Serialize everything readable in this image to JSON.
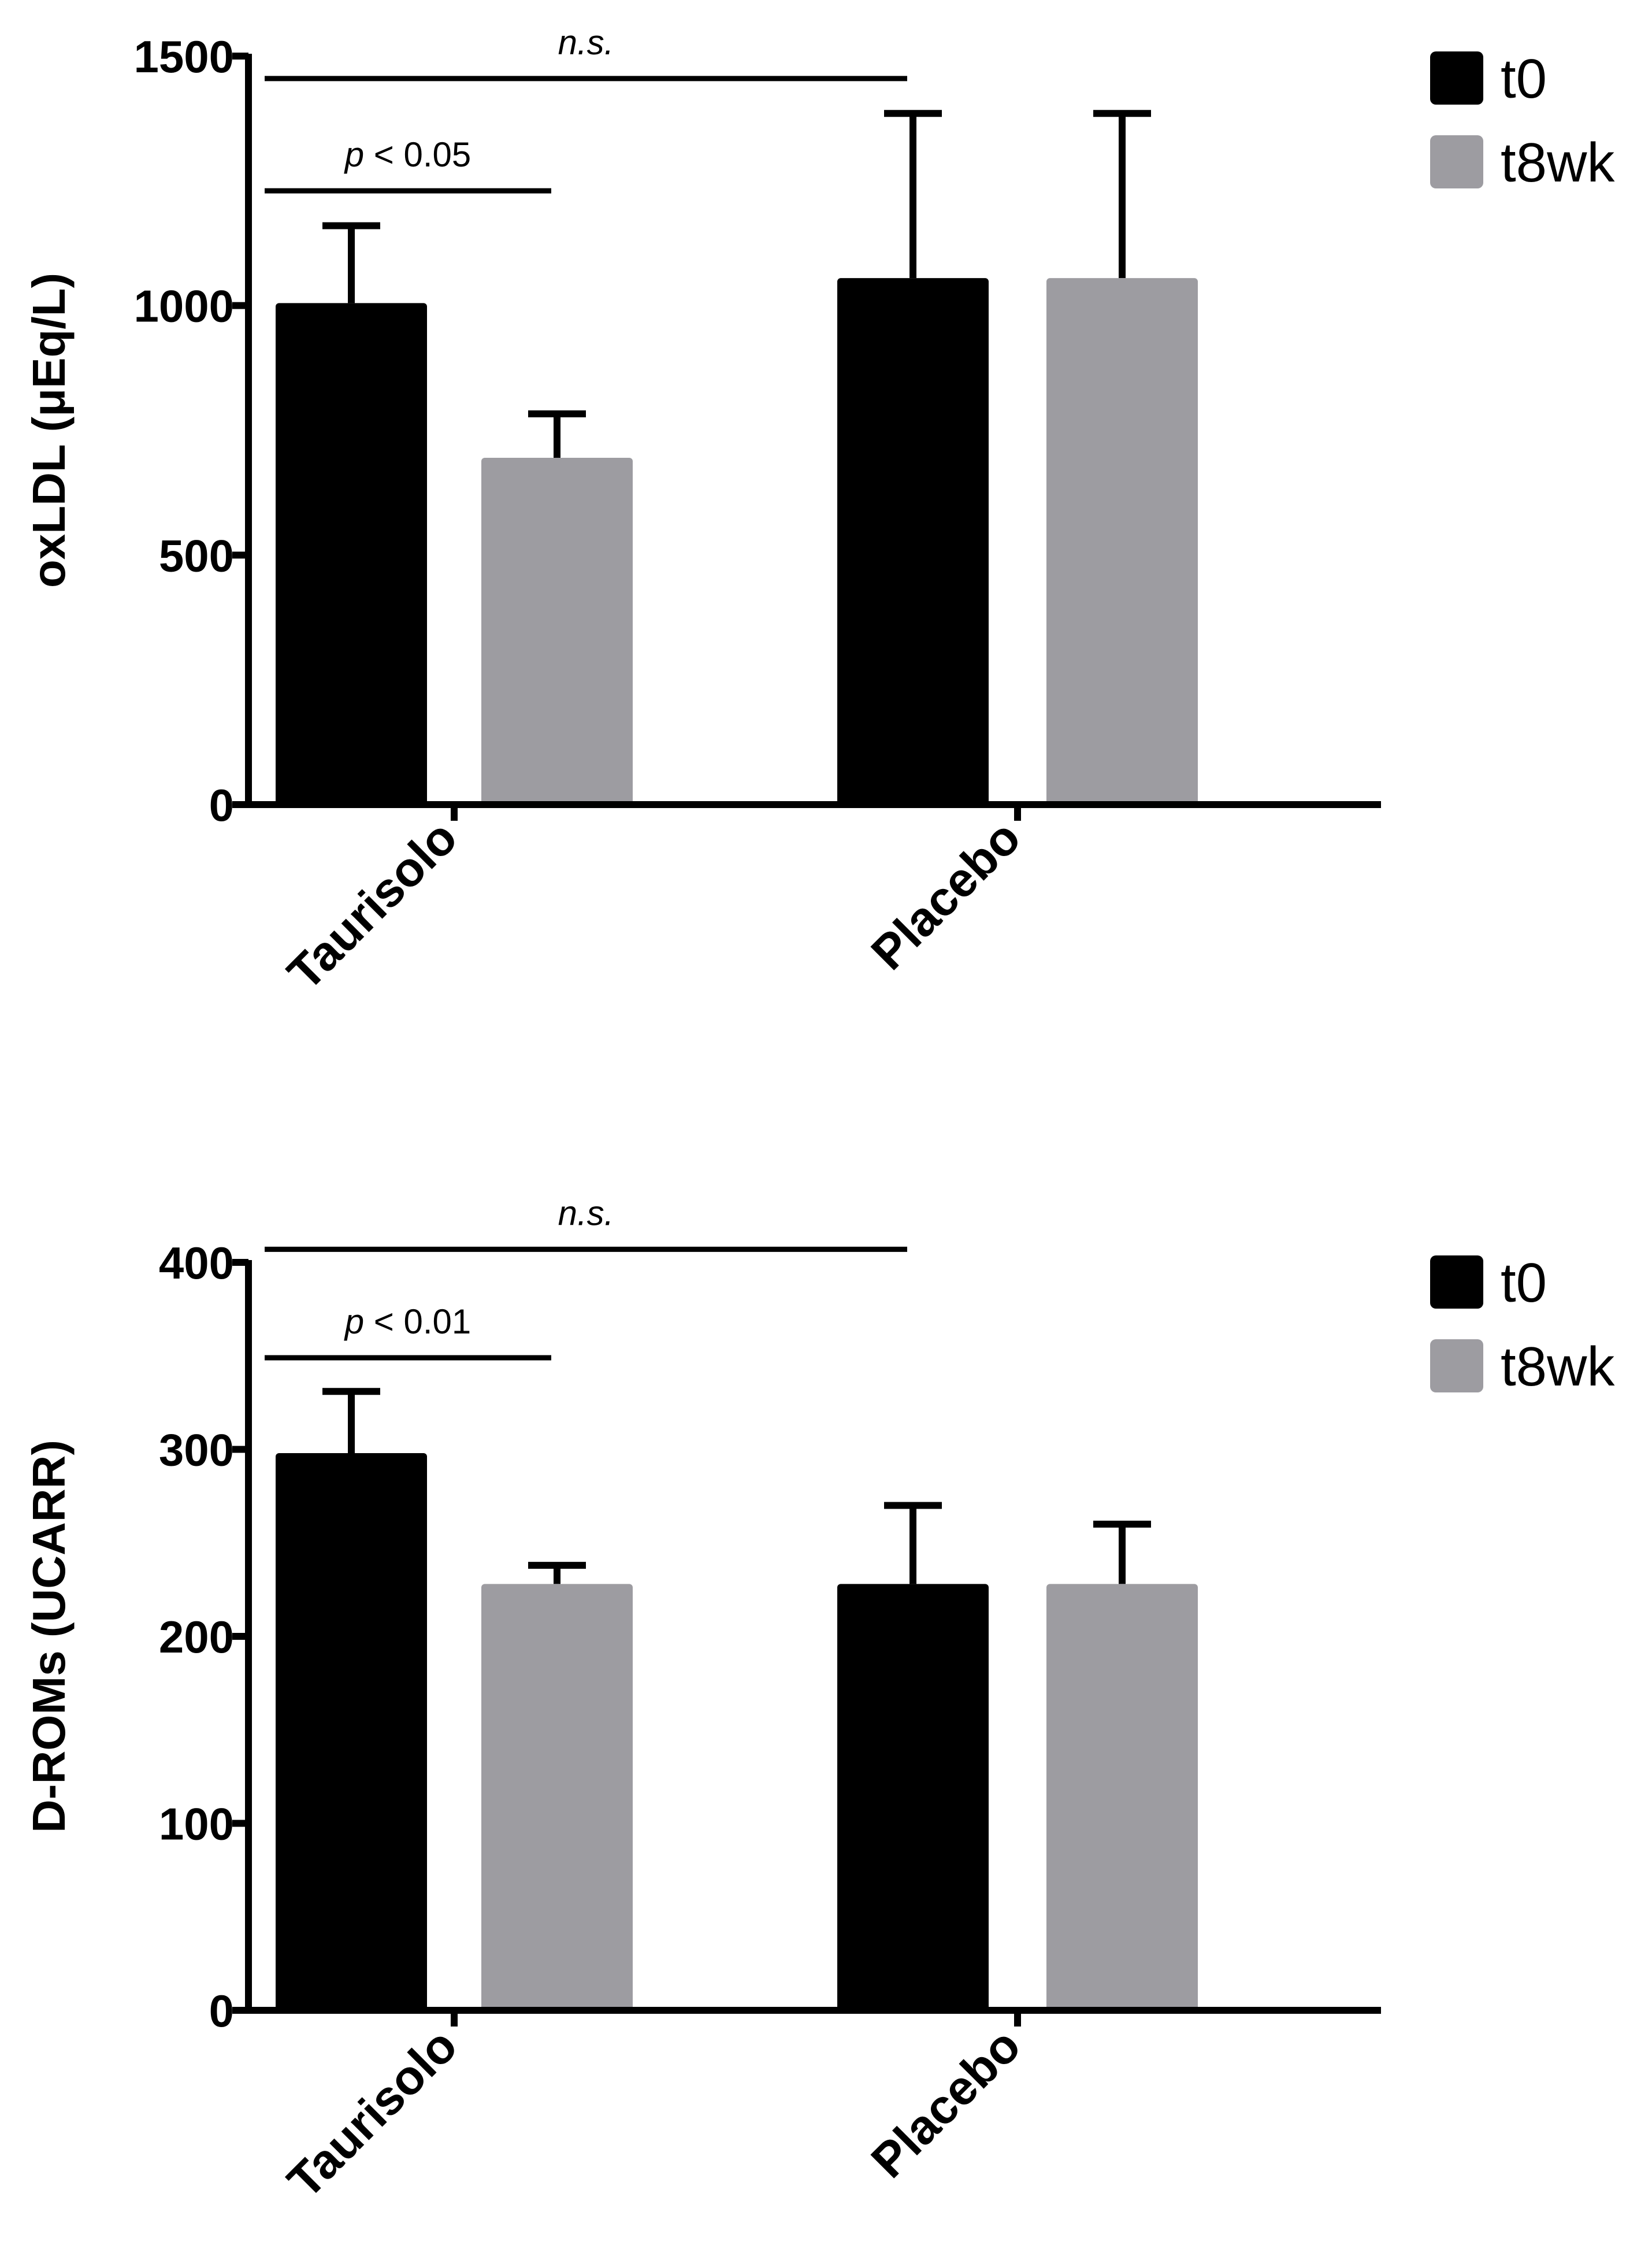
{
  "chart_data": [
    {
      "type": "bar",
      "categories": [
        "Taurisolo",
        "Placebo"
      ],
      "series": [
        {
          "name": "t0",
          "values": [
            1005,
            1055
          ],
          "errors": [
            155,
            330
          ],
          "color": "#000000"
        },
        {
          "name": "t8wk",
          "values": [
            695,
            1055
          ],
          "errors": [
            88,
            330
          ],
          "color": "#9d9ca1"
        }
      ],
      "title": "",
      "xlabel": "",
      "ylabel": "oxLDL (μEq/L)",
      "ylim": [
        0,
        1500
      ],
      "yticks": [
        0,
        500,
        1000,
        1500
      ],
      "ytick_labels": [
        "0",
        "500",
        "1000",
        "1500"
      ],
      "legend_position": "top-right",
      "annotations": [
        {
          "italic": "n.s.",
          "text": "",
          "from": [
            0,
            0
          ],
          "to": [
            1,
            0
          ],
          "y": 1455
        },
        {
          "italic": "p",
          "text": " < 0.05",
          "from": [
            0,
            0
          ],
          "to": [
            0,
            1
          ],
          "y": 1230
        }
      ]
    },
    {
      "type": "bar",
      "categories": [
        "Taurisolo",
        "Placebo"
      ],
      "series": [
        {
          "name": "t0",
          "values": [
            298,
            228
          ],
          "errors": [
            33,
            42
          ],
          "color": "#000000"
        },
        {
          "name": "t8wk",
          "values": [
            228,
            228
          ],
          "errors": [
            10,
            32
          ],
          "color": "#9d9ca1"
        }
      ],
      "title": "",
      "xlabel": "",
      "ylabel": "D-ROMs (UCARR)",
      "ylim": [
        0,
        400
      ],
      "yticks": [
        0,
        100,
        200,
        300,
        400
      ],
      "ytick_labels": [
        "0",
        "100",
        "200",
        "300",
        "400"
      ],
      "legend_position": "top-right",
      "annotations": [
        {
          "italic": "n.s.",
          "text": "",
          "from": [
            0,
            0
          ],
          "to": [
            1,
            0
          ],
          "y": 407
        },
        {
          "italic": "p",
          "text": " < 0.01",
          "from": [
            0,
            0
          ],
          "to": [
            0,
            1
          ],
          "y": 349
        }
      ]
    }
  ]
}
